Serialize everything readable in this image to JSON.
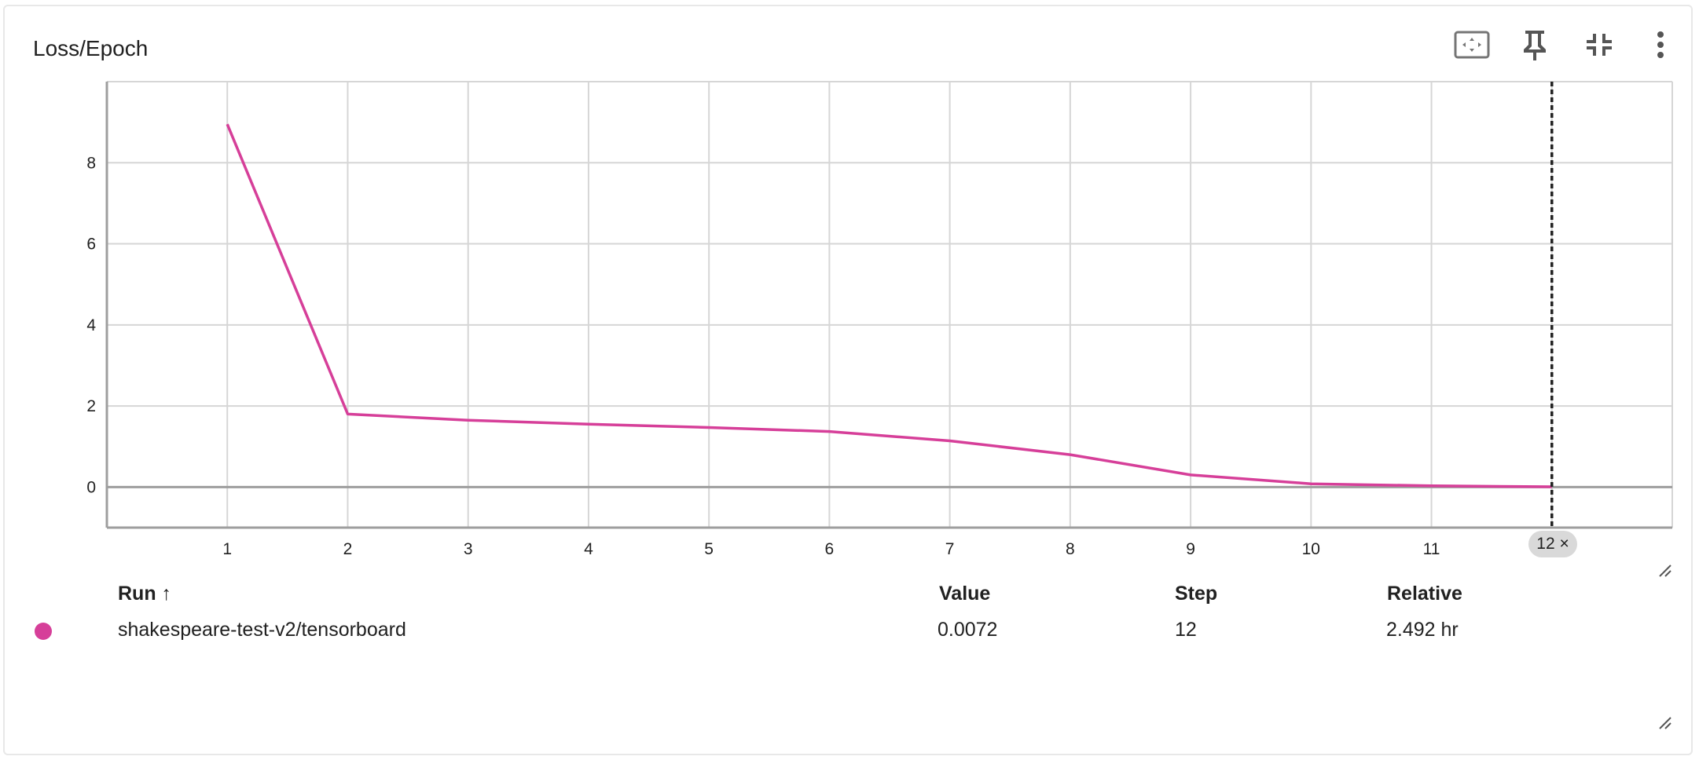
{
  "card": {
    "title": "Loss/Epoch"
  },
  "toolbar": {
    "icons": [
      "fullscreen-icon",
      "pin-icon",
      "collapse-icon",
      "more-vert-icon"
    ]
  },
  "chart_data": {
    "type": "line",
    "title": "Loss/Epoch",
    "xlabel": "",
    "ylabel": "",
    "x_ticks": [
      "1",
      "2",
      "3",
      "4",
      "5",
      "6",
      "7",
      "8",
      "9",
      "10",
      "11",
      "12"
    ],
    "y_ticks": [
      "0",
      "2",
      "4",
      "6",
      "8"
    ],
    "xlim": [
      0,
      13
    ],
    "ylim": [
      -1,
      10
    ],
    "grid": true,
    "series": [
      {
        "color": "#d63f99",
        "x": [
          1,
          2,
          3,
          4,
          5,
          6,
          7,
          8,
          9,
          10,
          11,
          12
        ],
        "y": [
          8.95,
          1.8,
          1.65,
          1.55,
          1.47,
          1.37,
          1.14,
          0.8,
          0.3,
          0.08,
          0.03,
          0.0072
        ]
      }
    ],
    "cursor_step": 12,
    "cursor_label": "12 ×"
  },
  "table": {
    "headers": {
      "run": "Run ↑",
      "value": "Value",
      "step": "Step",
      "relative": "Relative"
    },
    "rows": [
      {
        "color": "#d63f99",
        "run": "shakespeare-test-v2/tensorboard",
        "value": "0.0072",
        "step": "12",
        "relative": "2.492 hr"
      }
    ]
  }
}
